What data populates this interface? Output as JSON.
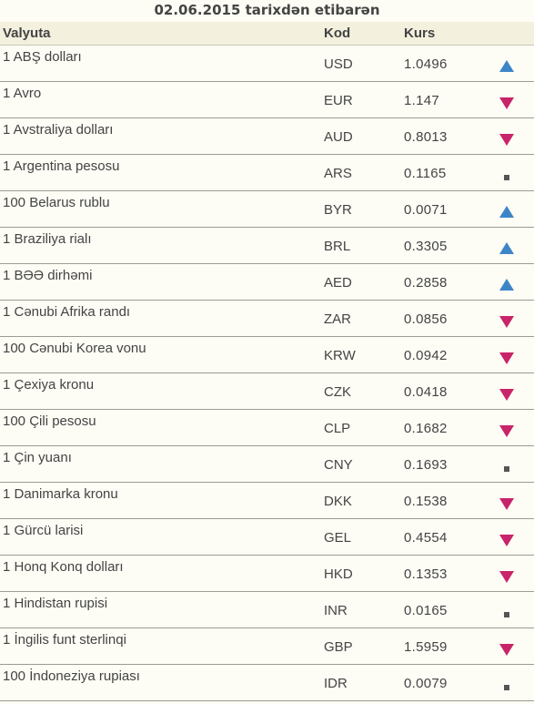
{
  "title": "02.06.2015 tarixdən etibarən",
  "header": {
    "currency": "Valyuta",
    "code": "Kod",
    "rate": "Kurs"
  },
  "colors": {
    "up": "#3c86c8",
    "down": "#c8246a",
    "same": "#555555",
    "header_bg": "#f3f0de",
    "page_bg": "#fdfcf5"
  },
  "rows": [
    {
      "name": "1 ABŞ dolları",
      "code": "USD",
      "rate": "1.0496",
      "trend": "up"
    },
    {
      "name": "1 Avro",
      "code": "EUR",
      "rate": "1.147",
      "trend": "down"
    },
    {
      "name": "1 Avstraliya dolları",
      "code": "AUD",
      "rate": "0.8013",
      "trend": "down"
    },
    {
      "name": "1 Argentina pesosu",
      "code": "ARS",
      "rate": "0.1165",
      "trend": "same"
    },
    {
      "name": "100 Belarus rublu",
      "code": "BYR",
      "rate": "0.0071",
      "trend": "up"
    },
    {
      "name": "1 Braziliya rialı",
      "code": "BRL",
      "rate": "0.3305",
      "trend": "up"
    },
    {
      "name": "1 BƏƏ dirhəmi",
      "code": "AED",
      "rate": "0.2858",
      "trend": "up"
    },
    {
      "name": "1 Cənubi Afrika randı",
      "code": "ZAR",
      "rate": "0.0856",
      "trend": "down"
    },
    {
      "name": "100 Cənubi Korea vonu",
      "code": "KRW",
      "rate": "0.0942",
      "trend": "down"
    },
    {
      "name": "1 Çexiya kronu",
      "code": "CZK",
      "rate": "0.0418",
      "trend": "down"
    },
    {
      "name": "100 Çili pesosu",
      "code": "CLP",
      "rate": "0.1682",
      "trend": "down"
    },
    {
      "name": "1 Çin yuanı",
      "code": "CNY",
      "rate": "0.1693",
      "trend": "same"
    },
    {
      "name": "1 Danimarka kronu",
      "code": "DKK",
      "rate": "0.1538",
      "trend": "down"
    },
    {
      "name": "1 Gürcü larisi",
      "code": "GEL",
      "rate": "0.4554",
      "trend": "down"
    },
    {
      "name": "1 Honq Konq dolları",
      "code": "HKD",
      "rate": "0.1353",
      "trend": "down"
    },
    {
      "name": "1 Hindistan rupisi",
      "code": "INR",
      "rate": "0.0165",
      "trend": "same"
    },
    {
      "name": "1 İngilis funt sterlinqi",
      "code": "GBP",
      "rate": "1.5959",
      "trend": "down"
    },
    {
      "name": "100 İndoneziya rupiası",
      "code": "IDR",
      "rate": "0.0079",
      "trend": "same"
    }
  ]
}
